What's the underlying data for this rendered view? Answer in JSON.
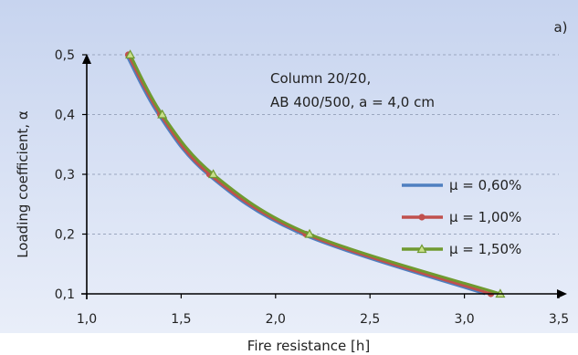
{
  "panel_label": "a)",
  "chart_data": {
    "type": "line",
    "xlabel": "Fire resistance [h]",
    "ylabel": "Loading coefficient, α",
    "xlim": [
      1.0,
      3.5
    ],
    "ylim": [
      0.1,
      0.5
    ],
    "xticks": [
      "1,0",
      "1,5",
      "2,0",
      "2,5",
      "3,0",
      "3,5"
    ],
    "xtick_values": [
      1.0,
      1.5,
      2.0,
      2.5,
      3.0,
      3.5
    ],
    "yticks": [
      "0,1",
      "0,2",
      "0,3",
      "0,4",
      "0,5"
    ],
    "ytick_values": [
      0.1,
      0.2,
      0.3,
      0.4,
      0.5
    ],
    "grid": "horizontal dashed",
    "legend_position": "right",
    "annotation_lines": [
      "Column 20/20,",
      "AB 400/500, a = 4,0 cm"
    ],
    "series": [
      {
        "name": "μ = 0,60%",
        "color": "#4f7fc0",
        "marker": "none",
        "x": [
          1.21,
          1.38,
          1.64,
          2.14,
          3.11
        ],
        "y": [
          0.5,
          0.4,
          0.3,
          0.2,
          0.1
        ]
      },
      {
        "name": "μ = 1,00%",
        "color": "#c0504d",
        "marker": "circle",
        "x": [
          1.22,
          1.39,
          1.65,
          2.16,
          3.14
        ],
        "y": [
          0.5,
          0.4,
          0.3,
          0.2,
          0.1
        ]
      },
      {
        "name": "μ = 1,50%",
        "color": "#6f9a2f",
        "marker": "triangle",
        "x": [
          1.23,
          1.4,
          1.67,
          2.18,
          3.19
        ],
        "y": [
          0.5,
          0.4,
          0.3,
          0.2,
          0.1
        ]
      }
    ]
  }
}
